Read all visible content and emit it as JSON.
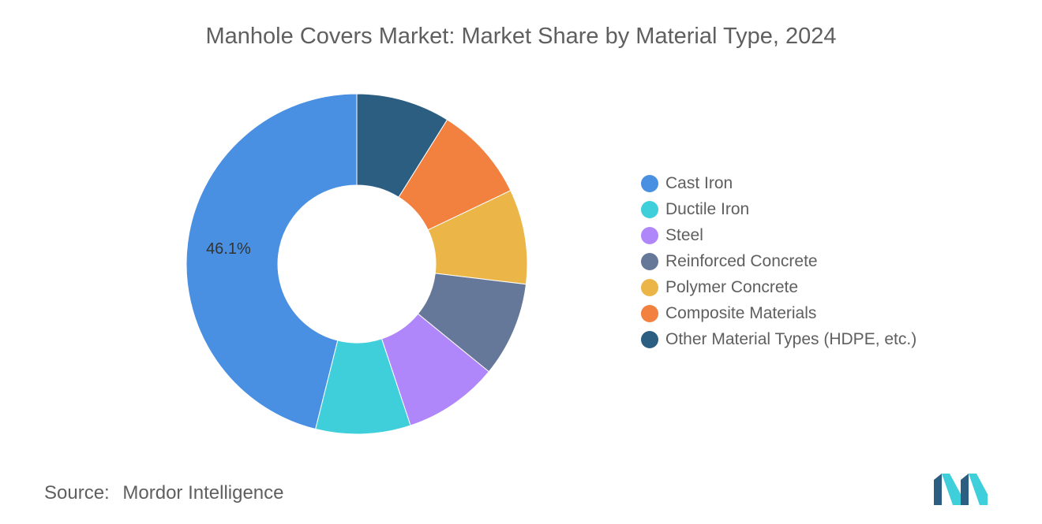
{
  "chart_data": {
    "type": "pie",
    "donut": true,
    "title": "Manhole Covers Market: Market Share by Material Type, 2024",
    "categories": [
      "Cast Iron",
      "Ductile Iron",
      "Steel",
      "Reinforced Concrete",
      "Polymer Concrete",
      "Composite Materials",
      "Other Material Types (HDPE, etc.)"
    ],
    "values": [
      46.1,
      9.0,
      9.0,
      9.0,
      9.0,
      9.0,
      8.9
    ],
    "colors": [
      "#4a90e2",
      "#3fcfda",
      "#b086fb",
      "#667899",
      "#ebb647",
      "#f2803f",
      "#2c5e82"
    ],
    "data_labels": [
      "46.1%",
      "",
      "",
      "",
      "",
      "",
      ""
    ],
    "legend_position": "right"
  },
  "source": {
    "label": "Source:",
    "value": "Mordor Intelligence"
  },
  "logo": {
    "icon": "mordor-intelligence-logo",
    "colors": [
      "#2c5e82",
      "#3fcfda"
    ]
  }
}
